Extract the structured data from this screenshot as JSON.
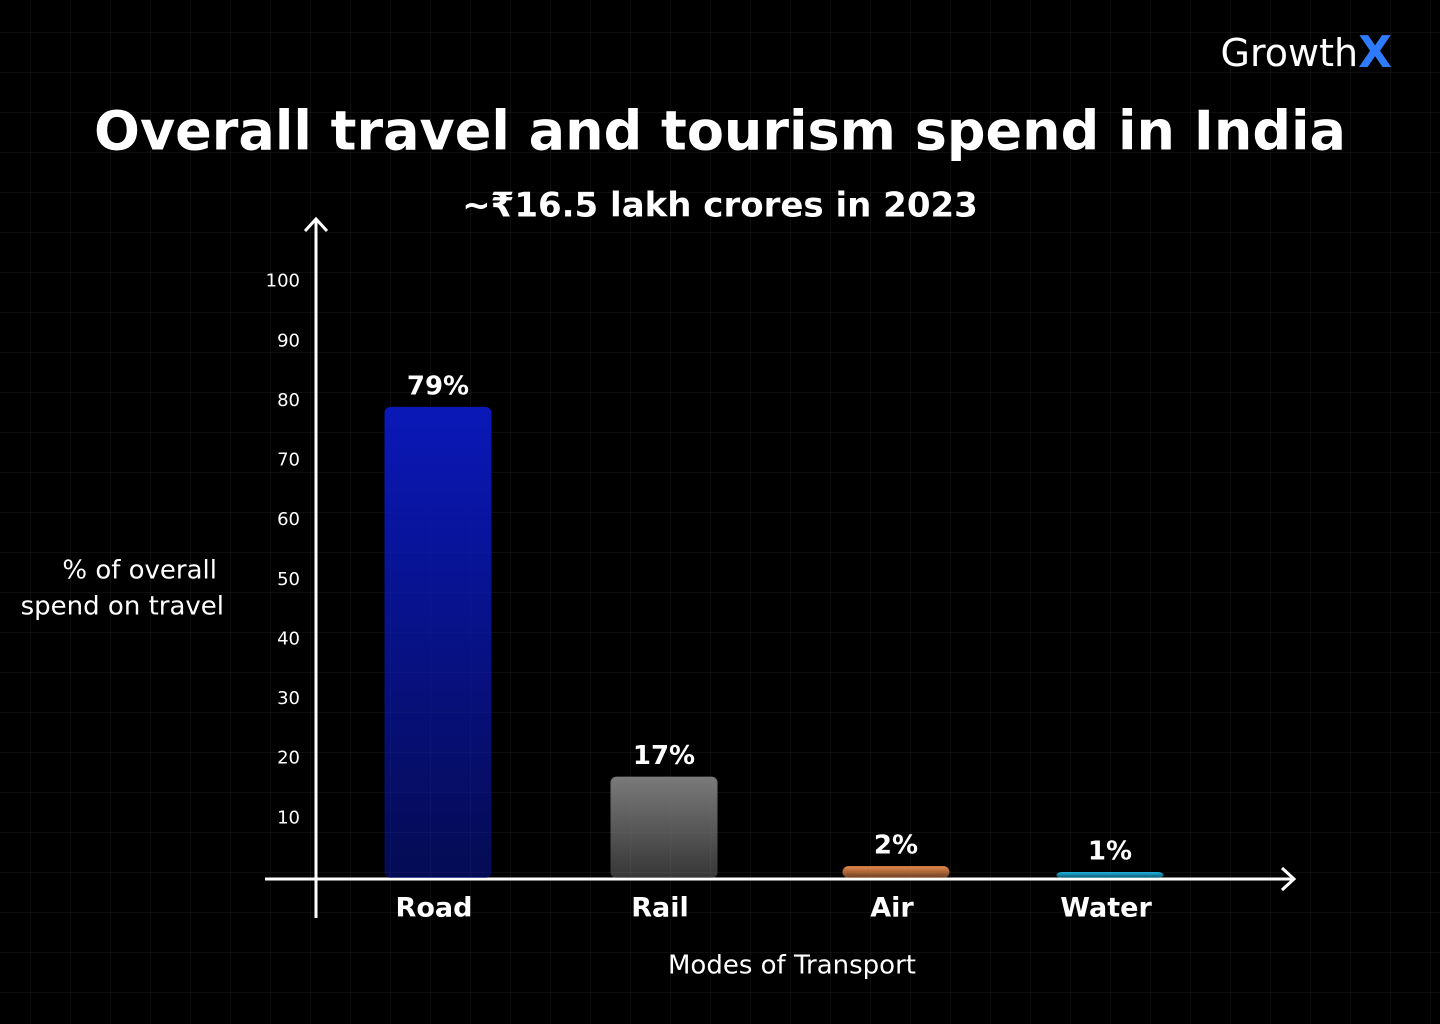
{
  "logo": [
    "Growth",
    "X"
  ],
  "chart_data": {
    "type": "bar",
    "title": "Overall travel and tourism spend in India",
    "subtitle": "~₹16.5 lakh crores in 2023",
    "ylabel": [
      "% of overall",
      "spend on travel"
    ],
    "xlabel": "Modes of Transport",
    "categories": [
      "Road",
      "Rail",
      "Air",
      "Water"
    ],
    "values": [
      79,
      17,
      2,
      1
    ],
    "value_labels": [
      "79%",
      "17%",
      "2%",
      "1%"
    ],
    "colors": [
      "#0a18b8",
      "#7a7a7a",
      "#e88a4c",
      "#1cb4e0"
    ],
    "ylim": [
      0,
      110
    ],
    "yticks": [
      10,
      20,
      30,
      40,
      50,
      60,
      70,
      80,
      90,
      100
    ]
  }
}
